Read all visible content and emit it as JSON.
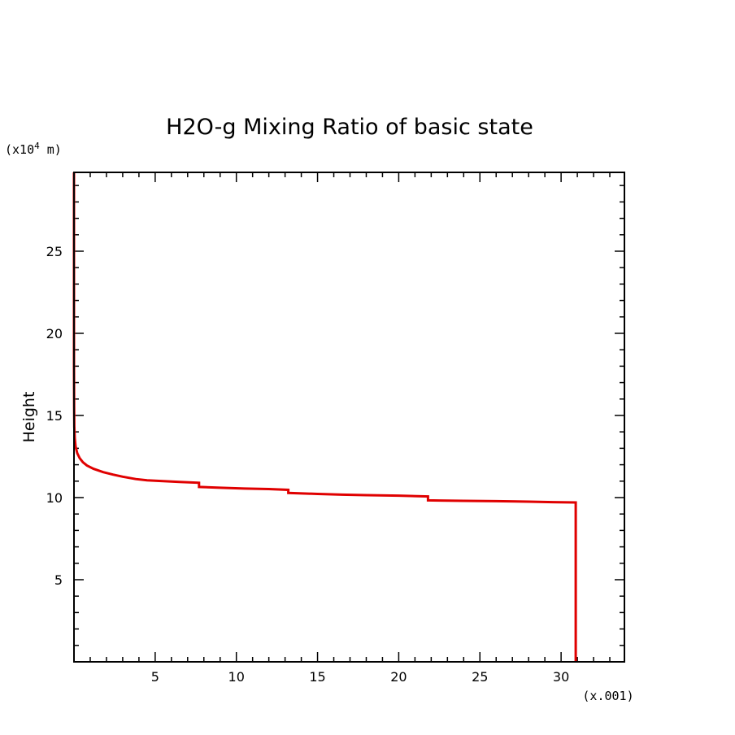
{
  "chart_data": {
    "type": "line",
    "title": "H2O-g Mixing Ratio of basic state",
    "xlabel": "",
    "ylabel": "Height",
    "x_unit": "(x.001)",
    "y_unit": "(x10",
    "y_unit_exp": "4",
    "y_unit_tail": " m)",
    "xlim": [
      0,
      33.9
    ],
    "ylim": [
      0,
      29.8
    ],
    "x_ticks": [
      5,
      10,
      15,
      20,
      25,
      30
    ],
    "x_tick_labels": [
      "5",
      "10",
      "15",
      "20",
      "25",
      "30"
    ],
    "y_ticks": [
      5,
      10,
      15,
      20,
      25
    ],
    "y_tick_labels": [
      "5",
      "10",
      "15",
      "20",
      "25"
    ],
    "grid": false,
    "series": [
      {
        "color": "#e00000",
        "points": [
          [
            30.9,
            0
          ],
          [
            30.9,
            9.7
          ],
          [
            29.5,
            9.72
          ],
          [
            28.0,
            9.75
          ],
          [
            26.0,
            9.78
          ],
          [
            24.0,
            9.8
          ],
          [
            22.5,
            9.82
          ],
          [
            21.8,
            9.83
          ],
          [
            21.8,
            10.07
          ],
          [
            20.0,
            10.12
          ],
          [
            18.0,
            10.15
          ],
          [
            16.5,
            10.18
          ],
          [
            15.0,
            10.22
          ],
          [
            13.2,
            10.28
          ],
          [
            13.2,
            10.47
          ],
          [
            12.0,
            10.52
          ],
          [
            10.5,
            10.55
          ],
          [
            9.0,
            10.6
          ],
          [
            7.7,
            10.65
          ],
          [
            7.7,
            10.9
          ],
          [
            6.5,
            10.95
          ],
          [
            5.5,
            11.0
          ],
          [
            4.5,
            11.05
          ],
          [
            3.8,
            11.13
          ],
          [
            3.0,
            11.27
          ],
          [
            2.4,
            11.4
          ],
          [
            1.8,
            11.55
          ],
          [
            1.2,
            11.75
          ],
          [
            0.8,
            11.95
          ],
          [
            0.55,
            12.15
          ],
          [
            0.35,
            12.4
          ],
          [
            0.2,
            12.7
          ],
          [
            0.1,
            13.1
          ],
          [
            0.05,
            13.6
          ],
          [
            0.02,
            14.3
          ],
          [
            0.01,
            15.5
          ],
          [
            0.0,
            18.0
          ],
          [
            0.0,
            29.8
          ]
        ]
      }
    ]
  }
}
